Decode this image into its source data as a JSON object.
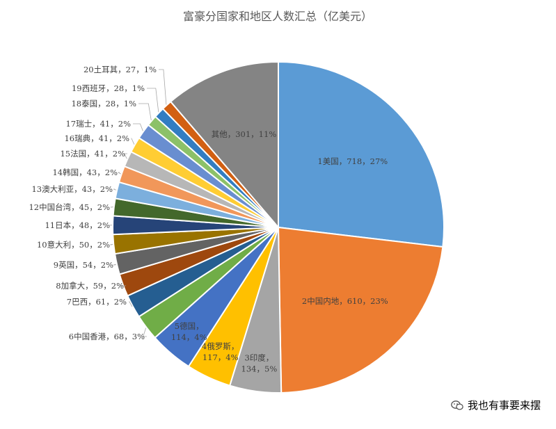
{
  "chart_data": {
    "type": "pie",
    "title": "富豪分国家和地区人数汇总（亿美元）",
    "slices": [
      {
        "label": "1美国，718，27%",
        "value": 718,
        "color": "#5B9BD5"
      },
      {
        "label": "2中国内地，610，23%",
        "value": 610,
        "color": "#ED7D31"
      },
      {
        "label": "3印度，134，5%",
        "value": 134,
        "color": "#A5A5A5"
      },
      {
        "label": "4俄罗斯，117，4%",
        "value": 117,
        "color": "#FFC000"
      },
      {
        "label": "5德国，114，4%",
        "value": 114,
        "color": "#4472C4"
      },
      {
        "label": "6中国香港，68，3%",
        "value": 68,
        "color": "#70AD47"
      },
      {
        "label": "7巴西，61，2%",
        "value": 61,
        "color": "#255E91"
      },
      {
        "label": "8加拿大，59，2%",
        "value": 59,
        "color": "#9E480E"
      },
      {
        "label": "9英国，54，2%",
        "value": 54,
        "color": "#636363"
      },
      {
        "label": "10意大利，50，2%",
        "value": 50,
        "color": "#997300"
      },
      {
        "label": "11日本，48，2%",
        "value": 48,
        "color": "#264478"
      },
      {
        "label": "12中国台湾，45，2%",
        "value": 45,
        "color": "#43682B"
      },
      {
        "label": "13澳大利亚，43，2%",
        "value": 43,
        "color": "#7CAFDD"
      },
      {
        "label": "14韩国，43，2%",
        "value": 43,
        "color": "#F1975A"
      },
      {
        "label": "15法国，41，2%",
        "value": 41,
        "color": "#B7B7B7"
      },
      {
        "label": "16瑞典，41，2%",
        "value": 41,
        "color": "#FFCD33"
      },
      {
        "label": "17瑞士，41，2%",
        "value": 41,
        "color": "#698ED0"
      },
      {
        "label": "18泰国，28，1%",
        "value": 28,
        "color": "#8CC168"
      },
      {
        "label": "19西班牙，28，1%",
        "value": 28,
        "color": "#327DC2"
      },
      {
        "label": "20土耳其，27，1%",
        "value": 27,
        "color": "#D26012"
      },
      {
        "label": "其他，301，11%",
        "value": 301,
        "color": "#848484"
      }
    ]
  },
  "watermark": {
    "text": "我也有事要来摆",
    "icon": "wechat-icon"
  }
}
